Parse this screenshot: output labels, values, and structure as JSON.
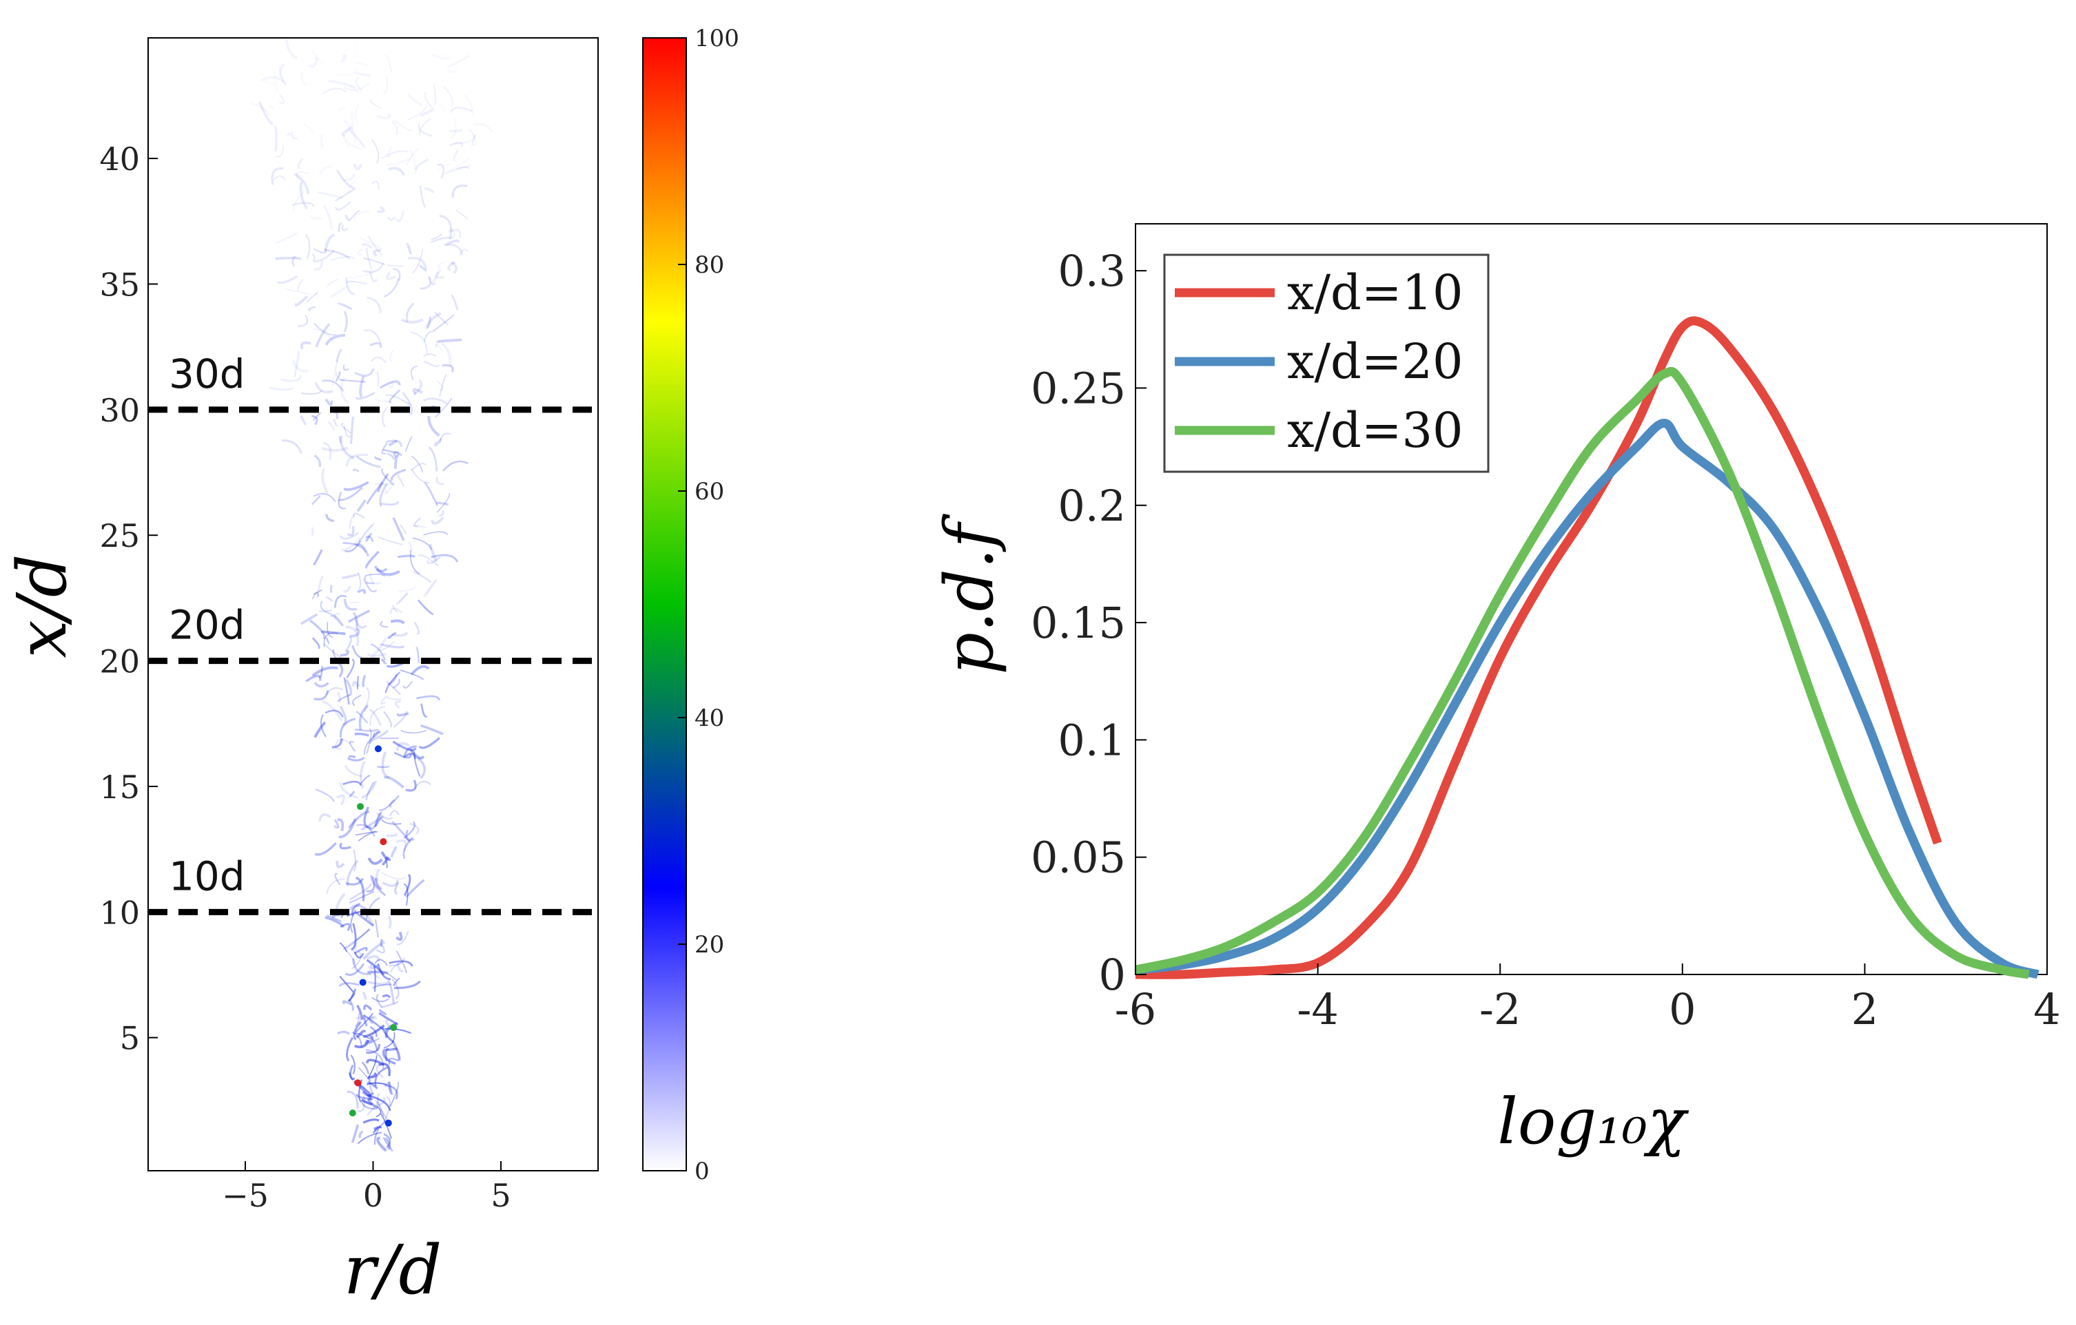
{
  "chart_data": [
    {
      "type": "heatmap",
      "xlabel": "r/d",
      "ylabel": "x/d",
      "xlim": [
        -8.8,
        8.8
      ],
      "ylim": [
        -0.3,
        44.8
      ],
      "xticks": [
        -5,
        0,
        5
      ],
      "yticks": [
        5,
        10,
        15,
        20,
        25,
        30,
        35,
        40
      ],
      "colorbar": {
        "min": 0,
        "max": 100,
        "ticks": [
          0,
          20,
          40,
          60,
          80,
          100
        ],
        "stops": [
          "#ffffff",
          "#0000ff",
          "#00c000",
          "#ffff00",
          "#ff0000"
        ]
      },
      "reference_lines": [
        {
          "label": "10d",
          "value": 10
        },
        {
          "label": "20d",
          "value": 20
        },
        {
          "label": "30d",
          "value": 30
        }
      ]
    },
    {
      "type": "line",
      "xlabel": "log₁₀χ",
      "ylabel": "p.d.f",
      "xlim": [
        -6,
        4
      ],
      "ylim": [
        0,
        0.32
      ],
      "xticks": [
        -6,
        -4,
        -2,
        0,
        2,
        4
      ],
      "yticks": [
        0,
        0.05,
        0.1,
        0.15,
        0.2,
        0.25,
        0.3
      ],
      "ytick_labels": [
        "0",
        "0.05",
        "0.1",
        "0.15",
        "0.2",
        "0.25",
        "0.3"
      ],
      "legend_position": "top-left",
      "series": [
        {
          "name": "x/d=10",
          "color": "#e3473e",
          "x": [
            -6,
            -5.5,
            -5,
            -4.5,
            -4,
            -3.5,
            -3,
            -2.5,
            -2,
            -1.5,
            -1,
            -0.5,
            -0.2,
            0,
            0.2,
            0.5,
            1,
            1.5,
            2,
            2.5,
            2.8
          ],
          "y": [
            0.0,
            0.0,
            0.001,
            0.002,
            0.005,
            0.02,
            0.045,
            0.09,
            0.135,
            0.17,
            0.2,
            0.235,
            0.262,
            0.276,
            0.278,
            0.268,
            0.24,
            0.2,
            0.15,
            0.09,
            0.056
          ]
        },
        {
          "name": "x/d=20",
          "color": "#4e8bc1",
          "x": [
            -6,
            -5.5,
            -5,
            -4.5,
            -4,
            -3.5,
            -3,
            -2.5,
            -2,
            -1.5,
            -1,
            -0.5,
            -0.2,
            0,
            0.5,
            1,
            1.5,
            2,
            2.5,
            3,
            3.5,
            3.9
          ],
          "y": [
            0.002,
            0.004,
            0.008,
            0.015,
            0.028,
            0.05,
            0.08,
            0.115,
            0.15,
            0.18,
            0.205,
            0.225,
            0.235,
            0.225,
            0.21,
            0.19,
            0.155,
            0.11,
            0.06,
            0.022,
            0.005,
            0.0
          ]
        },
        {
          "name": "x/d=30",
          "color": "#6cbe58",
          "x": [
            -6,
            -5.5,
            -5,
            -4.5,
            -4,
            -3.5,
            -3,
            -2.5,
            -2,
            -1.5,
            -1,
            -0.5,
            -0.2,
            0,
            0.5,
            1,
            1.5,
            2,
            2.5,
            3,
            3.5,
            3.8
          ],
          "y": [
            0.002,
            0.006,
            0.012,
            0.022,
            0.035,
            0.058,
            0.09,
            0.125,
            0.162,
            0.195,
            0.225,
            0.245,
            0.256,
            0.252,
            0.215,
            0.165,
            0.11,
            0.06,
            0.025,
            0.008,
            0.002,
            0.0
          ]
        }
      ]
    }
  ]
}
